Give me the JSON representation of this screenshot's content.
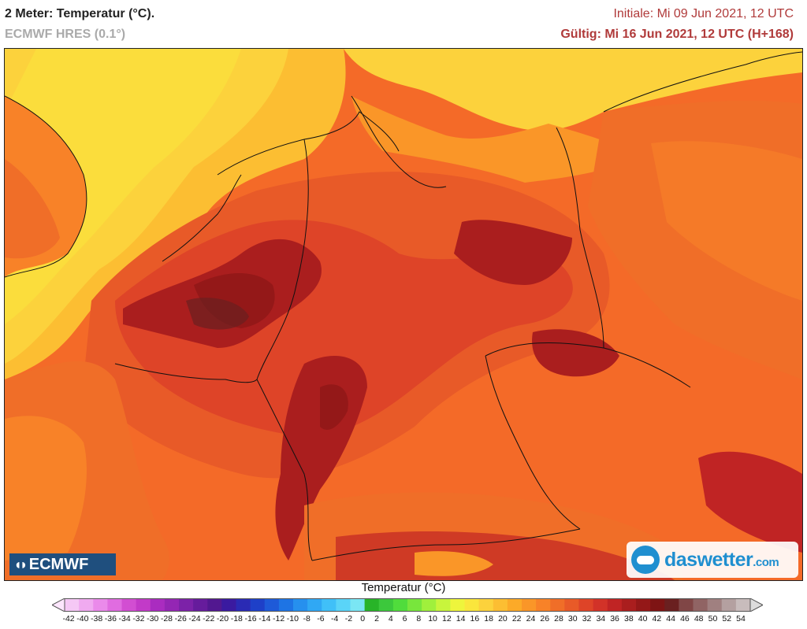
{
  "header": {
    "title": "2 Meter: Temperatur (°C).",
    "model": "ECMWF HRES (0.1°)",
    "init": "Initiale: Mi 09 Jun 2021, 12 UTC",
    "valid": "Gültig: Mi 16 Jun 2021, 12 UTC (H+168)"
  },
  "logos": {
    "left": "ECMWF",
    "right_main": "daswetter",
    "right_suffix": ".com"
  },
  "legend": {
    "title": "Temperatur (°C)",
    "ticks": [
      "-42",
      "-40",
      "-38",
      "-36",
      "-34",
      "-32",
      "-30",
      "-28",
      "-26",
      "-24",
      "-22",
      "-20",
      "-18",
      "-16",
      "-14",
      "-12",
      "-10",
      "-8",
      "-6",
      "-4",
      "-2",
      "0",
      "2",
      "4",
      "6",
      "8",
      "10",
      "12",
      "14",
      "16",
      "18",
      "20",
      "22",
      "24",
      "26",
      "28",
      "30",
      "32",
      "34",
      "36",
      "38",
      "40",
      "42",
      "44",
      "46",
      "48",
      "50",
      "52",
      "54"
    ],
    "colors": [
      "#f5c8f5",
      "#f0aaf0",
      "#ea8aea",
      "#e06ce0",
      "#d24ed2",
      "#c23ac8",
      "#aa2cc0",
      "#9426b4",
      "#7c22a8",
      "#661c9c",
      "#521890",
      "#3a1aa0",
      "#2a2ab4",
      "#1e40c8",
      "#1e5ad8",
      "#1e74e4",
      "#2690ee",
      "#30a8f4",
      "#40c0f8",
      "#5ad4f8",
      "#7ae6f4",
      "#28b428",
      "#3cc83c",
      "#50dc3c",
      "#78e63c",
      "#a0f03c",
      "#c8f53c",
      "#eef53c",
      "#fae63c",
      "#fcd23c",
      "#fcbe32",
      "#fcaa28",
      "#fa9628",
      "#f88228",
      "#f06e28",
      "#e85a28",
      "#de4428",
      "#d23228",
      "#c02424",
      "#aa1e1e",
      "#941818",
      "#7e1414",
      "#6a2020",
      "#804646",
      "#906464",
      "#a08080",
      "#b4a0a0",
      "#c8bcbc"
    ],
    "arrow_low": "#fde6fd",
    "arrow_high": "#dcdcdc"
  }
}
